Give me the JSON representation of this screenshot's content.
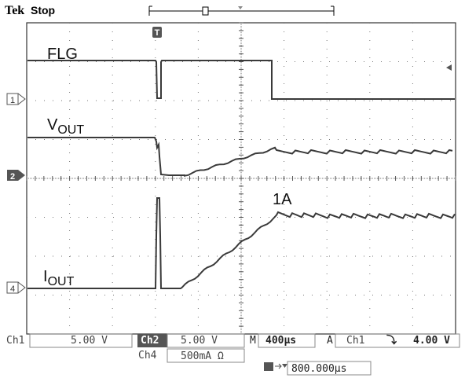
{
  "header": {
    "brand": "Tek",
    "status": "Stop"
  },
  "trigger_marker": "T",
  "channel_markers": {
    "ch1": "1",
    "ch2": "2",
    "ch4": "4"
  },
  "annotations": {
    "flg": "FLG",
    "vout_main": "V",
    "vout_sub": "OUT",
    "iout_main": "I",
    "iout_sub": "OUT",
    "peak": "1A"
  },
  "footer": {
    "ch1_label": "Ch1",
    "ch1_scale": "5.00 V",
    "ch2_label": "Ch2",
    "ch2_scale": "5.00 V",
    "ch4_label": "Ch4",
    "ch4_scale": "500mA Ω",
    "timebase_prefix": "M",
    "timebase": "400µs",
    "trig_mode": "A",
    "trig_source": "Ch1",
    "trig_slope": "⤵",
    "trig_level": "4.00 V",
    "trig_position": "800.000µs"
  },
  "colors": {
    "trace": "#3a3a3a",
    "grid": "#777777",
    "marker_fill": "#555555"
  }
}
